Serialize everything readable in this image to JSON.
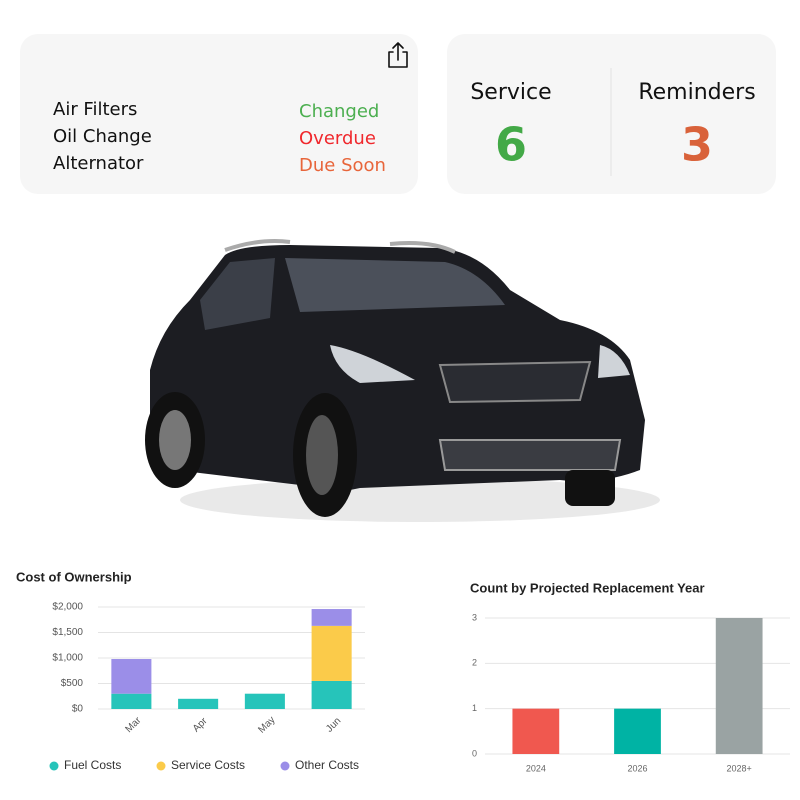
{
  "status_card": {
    "items": [
      {
        "label": "Air Filters",
        "status": "Changed",
        "color": "#4caf50"
      },
      {
        "label": "Oil Change",
        "status": "Overdue",
        "color": "#f0282d"
      },
      {
        "label": "Alternator",
        "status": "Due Soon",
        "color": "#e8653a"
      }
    ]
  },
  "summary_card": {
    "stats": [
      {
        "label": "Service",
        "value": 6,
        "color": "#43a947"
      },
      {
        "label": "Reminders",
        "value": 3,
        "color": "#d9623a"
      }
    ]
  },
  "chart_data": [
    {
      "type": "stacked_bar",
      "title": "Cost of Ownership",
      "categories": [
        "Mar",
        "Apr",
        "May",
        "Jun"
      ],
      "series": [
        {
          "name": "Fuel Costs",
          "color": "#26c4ba",
          "values": [
            300,
            200,
            300,
            550
          ]
        },
        {
          "name": "Service Costs",
          "color": "#fbcb4a",
          "values": [
            0,
            0,
            0,
            1080
          ]
        },
        {
          "name": "Other Costs",
          "color": "#9b8ee8",
          "values": [
            680,
            0,
            0,
            330
          ]
        }
      ],
      "ylim": [
        0,
        2000
      ],
      "yticks": [
        {
          "value": 0,
          "label": "$0"
        },
        {
          "value": 500,
          "label": "$500"
        },
        {
          "value": 1000,
          "label": "$1,000"
        },
        {
          "value": 1500,
          "label": "$1,500"
        },
        {
          "value": 2000,
          "label": "$2,000"
        }
      ],
      "grid": true,
      "legend": "bottom"
    },
    {
      "type": "bar",
      "title": "Count by Projected Replacement Year",
      "categories": [
        "2024",
        "2026",
        "2028+"
      ],
      "values": [
        1,
        1,
        3
      ],
      "colors": [
        "#f0584f",
        "#00b3a4",
        "#9aa3a3"
      ],
      "ylim": [
        0,
        3
      ],
      "yticks": [
        0,
        1,
        2,
        3
      ],
      "grid": true
    }
  ]
}
